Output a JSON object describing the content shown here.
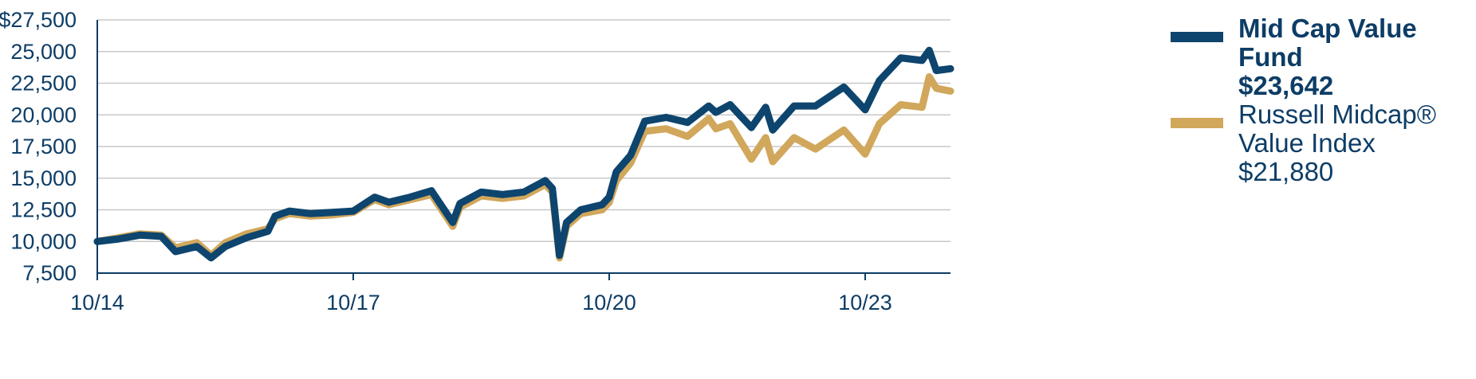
{
  "colors": {
    "fund": "#0d456e",
    "index": "#d1a75c",
    "grid": "#c8c8c8",
    "text": "#0d3d66"
  },
  "legend": [
    {
      "name": "Mid Cap Value Fund",
      "value": "$23,642",
      "color": "#0d456e",
      "bold": true
    },
    {
      "name": "Russell Midcap® Value Index",
      "value": "$21,880",
      "color": "#d1a75c",
      "bold": false
    }
  ],
  "chart_data": {
    "type": "line",
    "title": "",
    "xlabel": "",
    "ylabel": "",
    "ylim": [
      7500,
      27500
    ],
    "yticks": [
      7500,
      10000,
      12500,
      15000,
      17500,
      20000,
      22500,
      25000,
      27500
    ],
    "ytick_labels": [
      "7,500",
      "10,000",
      "12,500",
      "15,000",
      "17,500",
      "20,000",
      "22,500",
      "25,000",
      "$27,500"
    ],
    "xlim": [
      "2014-10",
      "2024-10"
    ],
    "xticks": [
      "2014-10",
      "2017-10",
      "2020-10",
      "2023-10"
    ],
    "xtick_labels": [
      "10/14",
      "10/17",
      "10/20",
      "10/23"
    ],
    "grid": "horizontal",
    "legend_position": "right",
    "series": [
      {
        "name": "Mid Cap Value Fund",
        "points": [
          [
            "2014-10",
            10000
          ],
          [
            "2015-01",
            10200
          ],
          [
            "2015-04",
            10500
          ],
          [
            "2015-07",
            10400
          ],
          [
            "2015-09",
            9200
          ],
          [
            "2015-12",
            9600
          ],
          [
            "2016-02",
            8700
          ],
          [
            "2016-04",
            9600
          ],
          [
            "2016-07",
            10300
          ],
          [
            "2016-10",
            10800
          ],
          [
            "2016-11",
            12000
          ],
          [
            "2017-01",
            12400
          ],
          [
            "2017-04",
            12200
          ],
          [
            "2017-07",
            12300
          ],
          [
            "2017-10",
            12400
          ],
          [
            "2018-01",
            13500
          ],
          [
            "2018-03",
            13100
          ],
          [
            "2018-06",
            13500
          ],
          [
            "2018-09",
            14000
          ],
          [
            "2018-12",
            11500
          ],
          [
            "2019-01",
            13000
          ],
          [
            "2019-04",
            13900
          ],
          [
            "2019-07",
            13700
          ],
          [
            "2019-10",
            13900
          ],
          [
            "2020-01",
            14800
          ],
          [
            "2020-02",
            14200
          ],
          [
            "2020-03",
            8900
          ],
          [
            "2020-04",
            11500
          ],
          [
            "2020-06",
            12500
          ],
          [
            "2020-09",
            12900
          ],
          [
            "2020-10",
            13500
          ],
          [
            "2020-11",
            15500
          ],
          [
            "2021-01",
            16800
          ],
          [
            "2021-03",
            19500
          ],
          [
            "2021-06",
            19800
          ],
          [
            "2021-09",
            19400
          ],
          [
            "2021-12",
            20700
          ],
          [
            "2022-01",
            20200
          ],
          [
            "2022-03",
            20800
          ],
          [
            "2022-06",
            19000
          ],
          [
            "2022-08",
            20600
          ],
          [
            "2022-09",
            18800
          ],
          [
            "2022-12",
            20700
          ],
          [
            "2023-03",
            20700
          ],
          [
            "2023-07",
            22200
          ],
          [
            "2023-10",
            20400
          ],
          [
            "2023-12",
            22700
          ],
          [
            "2024-03",
            24500
          ],
          [
            "2024-06",
            24300
          ],
          [
            "2024-07",
            25100
          ],
          [
            "2024-08",
            23500
          ],
          [
            "2024-10",
            23642
          ]
        ]
      },
      {
        "name": "Russell Midcap® Value Index",
        "points": [
          [
            "2014-10",
            10000
          ],
          [
            "2015-01",
            10300
          ],
          [
            "2015-04",
            10600
          ],
          [
            "2015-07",
            10500
          ],
          [
            "2015-09",
            9500
          ],
          [
            "2015-12",
            9900
          ],
          [
            "2016-02",
            8900
          ],
          [
            "2016-04",
            9900
          ],
          [
            "2016-07",
            10600
          ],
          [
            "2016-10",
            11000
          ],
          [
            "2016-11",
            11800
          ],
          [
            "2017-01",
            12200
          ],
          [
            "2017-04",
            12000
          ],
          [
            "2017-07",
            12100
          ],
          [
            "2017-10",
            12300
          ],
          [
            "2018-01",
            13300
          ],
          [
            "2018-03",
            12900
          ],
          [
            "2018-06",
            13300
          ],
          [
            "2018-09",
            13700
          ],
          [
            "2018-12",
            11200
          ],
          [
            "2019-01",
            12700
          ],
          [
            "2019-04",
            13600
          ],
          [
            "2019-07",
            13400
          ],
          [
            "2019-10",
            13600
          ],
          [
            "2020-01",
            14500
          ],
          [
            "2020-02",
            13900
          ],
          [
            "2020-03",
            8700
          ],
          [
            "2020-04",
            11200
          ],
          [
            "2020-06",
            12200
          ],
          [
            "2020-09",
            12500
          ],
          [
            "2020-10",
            13100
          ],
          [
            "2020-11",
            14800
          ],
          [
            "2021-01",
            16200
          ],
          [
            "2021-03",
            18700
          ],
          [
            "2021-06",
            18900
          ],
          [
            "2021-09",
            18300
          ],
          [
            "2021-12",
            19700
          ],
          [
            "2022-01",
            18900
          ],
          [
            "2022-03",
            19300
          ],
          [
            "2022-06",
            16500
          ],
          [
            "2022-08",
            18200
          ],
          [
            "2022-09",
            16300
          ],
          [
            "2022-12",
            18200
          ],
          [
            "2023-03",
            17300
          ],
          [
            "2023-07",
            18800
          ],
          [
            "2023-10",
            16900
          ],
          [
            "2023-12",
            19300
          ],
          [
            "2024-03",
            20800
          ],
          [
            "2024-06",
            20600
          ],
          [
            "2024-07",
            23000
          ],
          [
            "2024-08",
            22100
          ],
          [
            "2024-10",
            21880
          ]
        ]
      }
    ]
  }
}
